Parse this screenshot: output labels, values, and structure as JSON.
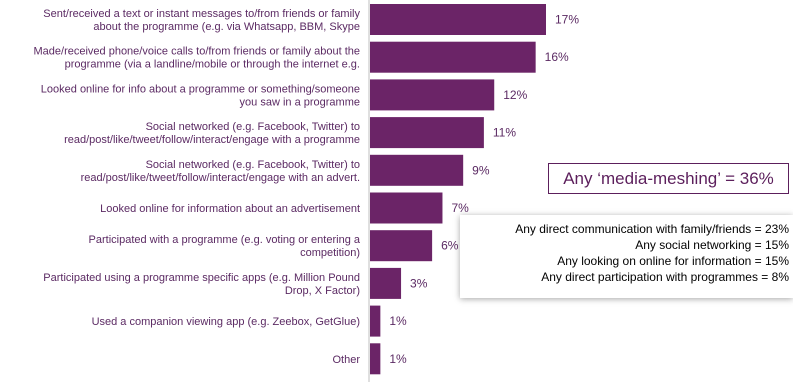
{
  "chart_data": {
    "type": "bar",
    "orientation": "horizontal",
    "categories": [
      [
        "Sent/received a text or instant messages to/from friends or family",
        "about the programme  (e.g. via Whatsapp, BBM, Skype"
      ],
      [
        "Made/received phone/voice calls to/from friends or family about the",
        "programme (via a landline/mobile  or through the internet e.g."
      ],
      [
        "Looked online for info about a programme or something/someone",
        "you saw in a programme"
      ],
      [
        "Social networked (e.g. Facebook, Twitter) to",
        "read/post/like/tweet/follow/interact/engage with a programme"
      ],
      [
        "Social networked (e.g. Facebook, Twitter) to",
        "read/post/like/tweet/follow/interact/engage with an advert."
      ],
      [
        "Looked online for information about an advertisement"
      ],
      [
        "Participated with a programme (e.g. voting or entering  a",
        "competition)"
      ],
      [
        "Participated using a programme specific apps (e.g. Million Pound",
        "Drop, X Factor)"
      ],
      [
        "Used a companion viewing app  (e.g. Zeebox, GetGlue)"
      ],
      [
        "Other"
      ]
    ],
    "values": [
      17,
      16,
      12,
      11,
      9,
      7,
      6,
      3,
      1,
      1
    ],
    "value_labels": [
      "17%",
      "16%",
      "12%",
      "11%",
      "9%",
      "7%",
      "6%",
      "3%",
      "1%",
      "1%"
    ],
    "xlim": [
      0,
      17
    ],
    "bar_color": "#6b2467",
    "label_color": "#5b2a63"
  },
  "callout": {
    "text": "Any ‘media-meshing’ = 36%",
    "border_color": "#5c1f5c"
  },
  "summary_lines": [
    "Any direct communication with family/friends = 23%",
    "Any social networking = 15%",
    "Any looking on online for information = 15%",
    "Any direct participation with programmes = 8%"
  ]
}
